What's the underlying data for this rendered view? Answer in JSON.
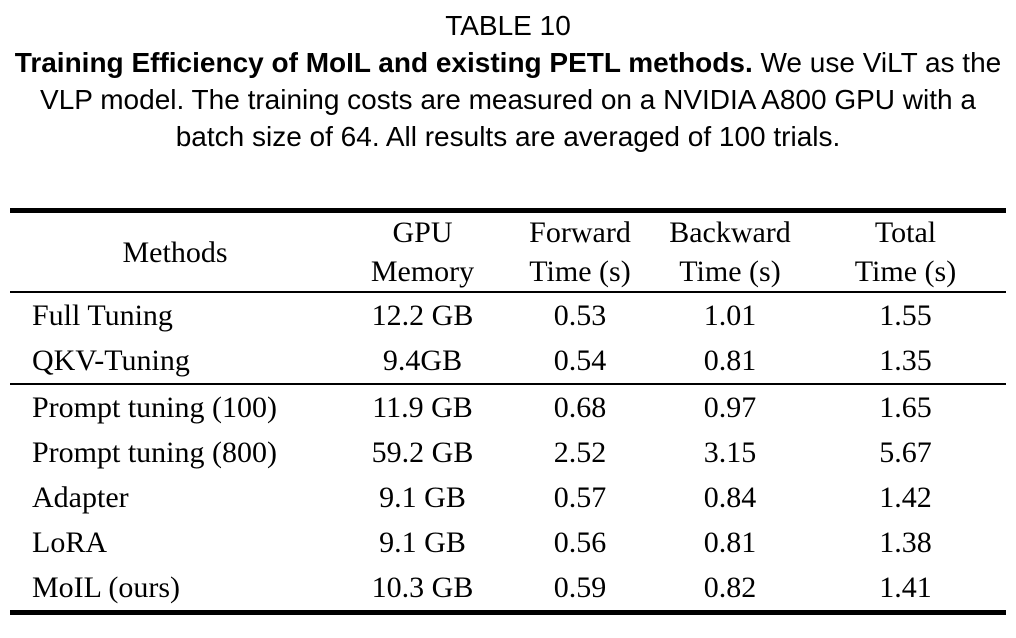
{
  "caption": {
    "label": "TABLE 10",
    "title_bold": "Training Efficiency of MoIL and existing PETL methods.",
    "body_text": "We use ViLT as the VLP model. The training costs are measured on a NVIDIA A800 GPU with a batch size of 64. All results are averaged of 100 trials."
  },
  "table": {
    "header": {
      "methods": "Methods",
      "columns": [
        {
          "line1": "GPU",
          "line2": "Memory"
        },
        {
          "line1": "Forward",
          "line2": "Time (s)"
        },
        {
          "line1": "Backward",
          "line2": "Time (s)"
        },
        {
          "line1": "Total",
          "line2": "Time (s)"
        }
      ]
    },
    "rows": [
      {
        "method": "Full Tuning",
        "gpu_memory": "12.2 GB",
        "forward_time": "0.53",
        "backward_time": "1.01",
        "total_time": "1.55"
      },
      {
        "method": "QKV-Tuning",
        "gpu_memory": "9.4GB",
        "forward_time": "0.54",
        "backward_time": "0.81",
        "total_time": "1.35"
      },
      {
        "method": "Prompt tuning (100)",
        "gpu_memory": "11.9 GB",
        "forward_time": "0.68",
        "backward_time": "0.97",
        "total_time": "1.65"
      },
      {
        "method": "Prompt tuning (800)",
        "gpu_memory": "59.2 GB",
        "forward_time": "2.52",
        "backward_time": "3.15",
        "total_time": "5.67"
      },
      {
        "method": "Adapter",
        "gpu_memory": "9.1 GB",
        "forward_time": "0.57",
        "backward_time": "0.84",
        "total_time": "1.42"
      },
      {
        "method": "LoRA",
        "gpu_memory": "9.1 GB",
        "forward_time": "0.56",
        "backward_time": "0.81",
        "total_time": "1.38"
      },
      {
        "method": "MoIL (ours)",
        "gpu_memory": "10.3 GB",
        "forward_time": "0.59",
        "backward_time": "0.82",
        "total_time": "1.41"
      }
    ]
  },
  "chart_data": {
    "type": "table",
    "title": "TABLE 10: Training Efficiency of MoIL and existing PETL methods.",
    "columns": [
      "Methods",
      "GPU Memory",
      "Forward Time (s)",
      "Backward Time (s)",
      "Total Time (s)"
    ],
    "rows": [
      [
        "Full Tuning",
        "12.2 GB",
        0.53,
        1.01,
        1.55
      ],
      [
        "QKV-Tuning",
        "9.4GB",
        0.54,
        0.81,
        1.35
      ],
      [
        "Prompt tuning (100)",
        "11.9 GB",
        0.68,
        0.97,
        1.65
      ],
      [
        "Prompt tuning (800)",
        "59.2 GB",
        2.52,
        3.15,
        5.67
      ],
      [
        "Adapter",
        "9.1 GB",
        0.57,
        0.84,
        1.42
      ],
      [
        "LoRA",
        "9.1 GB",
        0.56,
        0.81,
        1.38
      ],
      [
        "MoIL (ours)",
        "10.3 GB",
        0.59,
        0.82,
        1.41
      ]
    ]
  }
}
